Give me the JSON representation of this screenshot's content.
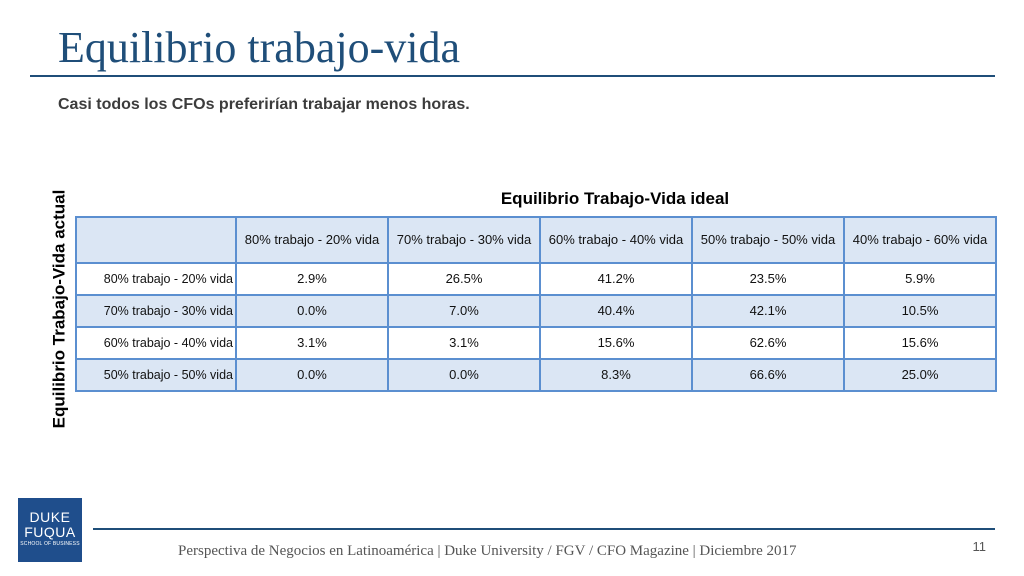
{
  "title": "Equilibrio trabajo-vida",
  "subtitle": "Casi todos los CFOs preferirían trabajar menos horas.",
  "table": {
    "column_heading": "Equilibrio Trabajo-Vida ideal",
    "row_heading": "Equilibrio Trabajo-Vida actual",
    "columns": [
      "80% trabajo - 20% vida",
      "70% trabajo - 30% vida",
      "60% trabajo - 40% vida",
      "50% trabajo - 50% vida",
      "40% trabajo - 60% vida"
    ],
    "rows": [
      {
        "label": "80% trabajo - 20% vida",
        "values": [
          "2.9%",
          "26.5%",
          "41.2%",
          "23.5%",
          "5.9%"
        ]
      },
      {
        "label": "70% trabajo - 30% vida",
        "values": [
          "0.0%",
          "7.0%",
          "40.4%",
          "42.1%",
          "10.5%"
        ]
      },
      {
        "label": "60% trabajo - 40% vida",
        "values": [
          "3.1%",
          "3.1%",
          "15.6%",
          "62.6%",
          "15.6%"
        ]
      },
      {
        "label": "50% trabajo - 50% vida",
        "values": [
          "0.0%",
          "0.0%",
          "8.3%",
          "66.6%",
          "25.0%"
        ]
      }
    ]
  },
  "logo": {
    "line1": "DUKE",
    "line2": "FUQUA",
    "line3": "SCHOOL OF BUSINESS"
  },
  "footer": "Perspectiva de Negocios en Latinoamérica | Duke University / FGV / CFO Magazine | Diciembre 2017",
  "page_number": "11",
  "colors": {
    "title": "#1f4e79",
    "grid_border": "#5b8fd0",
    "band": "#dbe6f4",
    "logo_bg": "#1f4e8c"
  }
}
